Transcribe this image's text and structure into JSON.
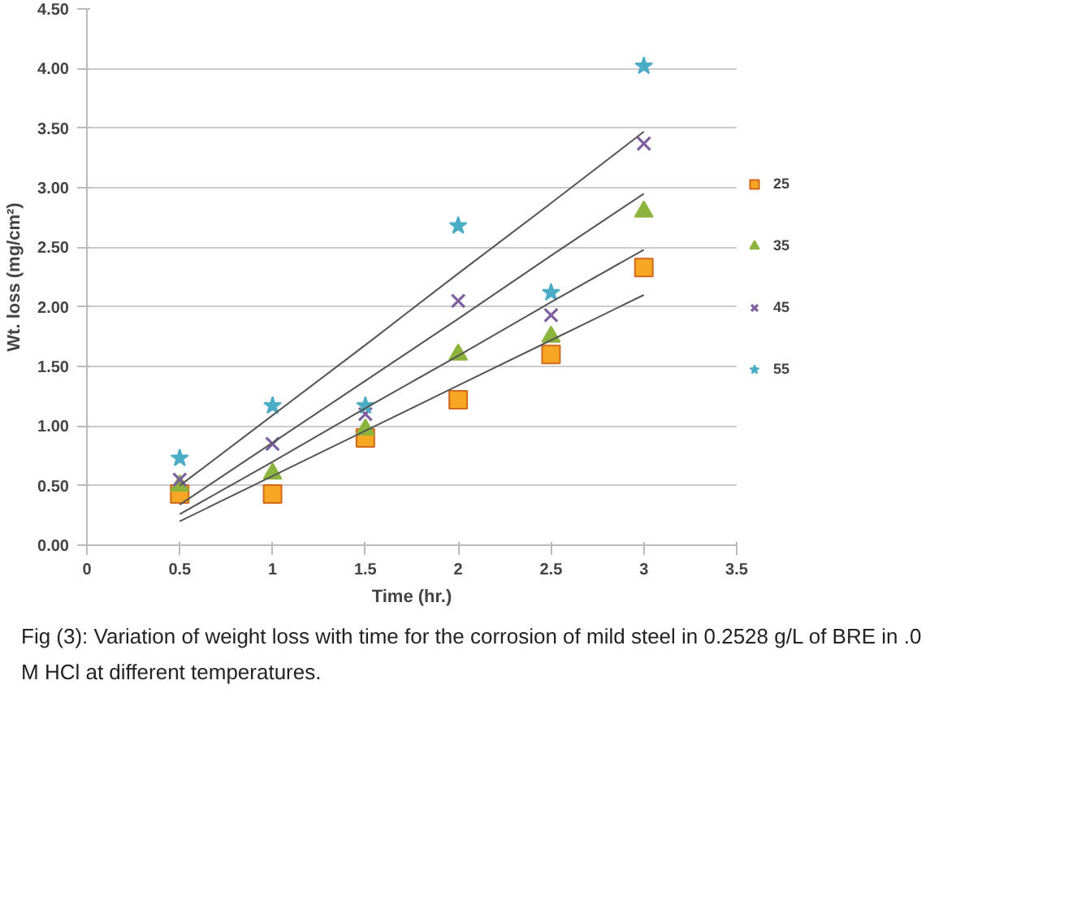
{
  "chart_data": {
    "type": "scatter",
    "xlabel": "Time (hr.)",
    "ylabel": "Wt. loss (mg/cm²)",
    "x": [
      0.5,
      1,
      1.5,
      2,
      2.5,
      3
    ],
    "xlim": [
      0,
      3.5
    ],
    "xticks": [
      0,
      0.5,
      1,
      1.5,
      2,
      2.5,
      3,
      3.5
    ],
    "ylim": [
      0,
      4.5
    ],
    "yticks": [
      {
        "value": 0,
        "label": "0.00"
      },
      {
        "value": 0.5,
        "label": "0.50"
      },
      {
        "value": 1,
        "label": "1.00"
      },
      {
        "value": 1.5,
        "label": "1.50"
      },
      {
        "value": 2,
        "label": "2.00"
      },
      {
        "value": 2.5,
        "label": "2.50"
      },
      {
        "value": 3,
        "label": "3.00"
      },
      {
        "value": 3.5,
        "label": "3.50"
      },
      {
        "value": 4,
        "label": "4.00"
      },
      {
        "value": 4.5,
        "label": "4.50"
      }
    ],
    "grid": "y",
    "legend": "right",
    "series": [
      {
        "name": "25",
        "color": "#f5a623",
        "marker": "square",
        "values": [
          0.43,
          0.43,
          0.9,
          1.22,
          1.6,
          2.33
        ]
      },
      {
        "name": "35",
        "color": "#8cb43c",
        "marker": "triangle",
        "values": [
          0.5,
          0.6,
          0.97,
          1.6,
          1.75,
          2.8
        ]
      },
      {
        "name": "45",
        "color": "#7d5fa0",
        "marker": "cross",
        "values": [
          0.55,
          0.85,
          1.1,
          2.05,
          1.93,
          3.37
        ]
      },
      {
        "name": "55",
        "color": "#4bacc6",
        "marker": "star",
        "values": [
          0.73,
          1.17,
          1.17,
          2.68,
          2.12,
          4.02
        ]
      },
      {
        "type": "line",
        "color": "#555555",
        "values": [
          0.2,
          0.58,
          0.96,
          1.34,
          1.72,
          2.1
        ]
      },
      {
        "type": "line",
        "color": "#555555",
        "values": [
          0.26,
          0.7,
          1.15,
          1.59,
          2.04,
          2.48
        ]
      },
      {
        "type": "line",
        "color": "#555555",
        "values": [
          0.34,
          0.86,
          1.38,
          1.9,
          2.43,
          2.95
        ]
      },
      {
        "type": "line",
        "color": "#555555",
        "values": [
          0.5,
          1.09,
          1.68,
          2.28,
          2.87,
          3.47
        ]
      }
    ],
    "annotations": [
      "Fig (3): Variation of weight loss with time for the corrosion of mild steel in 0.2528 g/L of BRE in .0 M HCl at different temperatures."
    ]
  }
}
